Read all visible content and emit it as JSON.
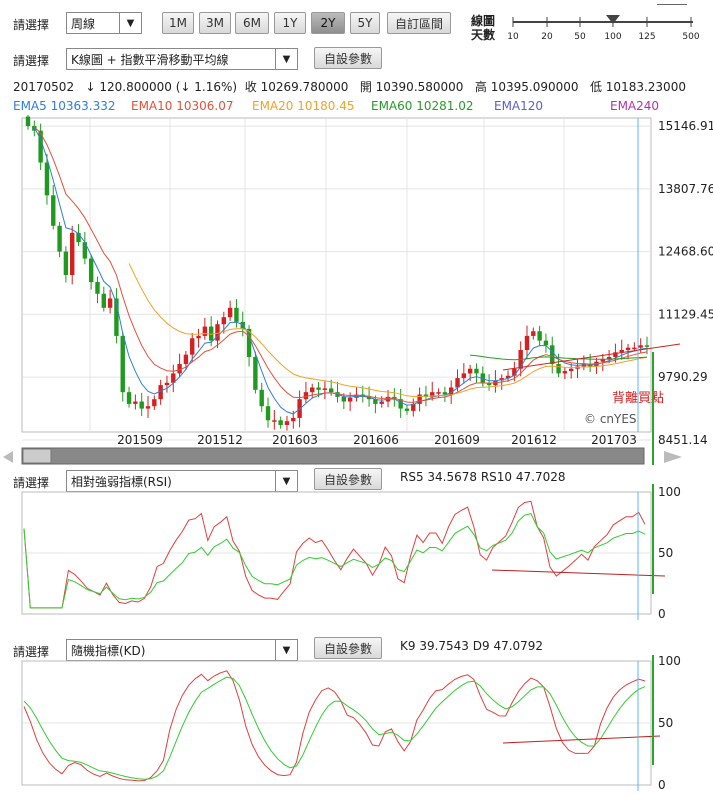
{
  "toolbar1": {
    "select_label": "請選擇",
    "period_value": "周線",
    "range_buttons": [
      "1M",
      "3M",
      "6M",
      "1Y",
      "2Y",
      "5Y"
    ],
    "active_range": "2Y",
    "custom_range_label": "自訂區間",
    "line_days_label_1": "線圖",
    "line_days_label_2": "天數",
    "slider_ticks": [
      "10",
      "20",
      "50",
      "100",
      "125",
      "500"
    ],
    "slider_value": 100
  },
  "toolbar2": {
    "select_label": "請選擇",
    "indicator_value": "K線圖 + 指數平滑移動平均線",
    "settings_label": "自設參數"
  },
  "quote": {
    "date": "20170502",
    "change": "↓ 120.800000 (↓ 1.16%)",
    "close": "收 10269.780000",
    "open": "開 10390.580000",
    "high": "高 10395.090000",
    "low": "低 10183.23000"
  },
  "ema_legend": [
    {
      "text": "EMA5 10363.332",
      "color": "#2f7fd8"
    },
    {
      "text": "EMA10 10306.07",
      "color": "#e0533b"
    },
    {
      "text": "EMA20 10180.45",
      "color": "#f0a22a"
    },
    {
      "text": "EMA60 10281.02",
      "color": "#2a9a2a"
    },
    {
      "text": "EMA120",
      "color": "#5b5fc7"
    },
    {
      "text": "EMA240",
      "color": "#b333b3"
    }
  ],
  "annotations": {
    "divergence": "背離買點",
    "watermark": "© cnYES"
  },
  "rsi": {
    "select_label": "請選擇",
    "indicator_value": "相對強弱指標(RSI)",
    "settings_label": "自設參數",
    "readout": "RS5 34.5678   RS10 47.7028"
  },
  "kd": {
    "select_label": "請選擇",
    "indicator_value": "隨機指標(KD)",
    "settings_label": "自設參數",
    "readout": "K9 39.7543   D9 47.0792"
  },
  "colors": {
    "up": "#d42020",
    "down": "#1f9a1f",
    "ema5": "#2f7fd8",
    "ema10": "#e0533b",
    "ema20": "#f0a22a",
    "ema60": "#2a9a2a",
    "cursor": "#58b8f0",
    "trend": "#d42020",
    "trend_green": "#2aa52a"
  },
  "chart_data": [
    {
      "type": "candlestick",
      "title": "",
      "x_tick_labels": [
        "201509",
        "201512",
        "201603",
        "201606",
        "201609",
        "201612",
        "201703"
      ],
      "y_tick_labels": [
        "15146.91",
        "13807.76",
        "12468.60",
        "11129.45",
        "9790.29",
        "8451.14"
      ],
      "ylim": [
        8451.14,
        15146.91
      ],
      "grid": true,
      "weekly_close": [
        14980,
        14880,
        14200,
        13500,
        12850,
        12300,
        11800,
        12700,
        12500,
        12150,
        11650,
        11400,
        11100,
        11300,
        10500,
        9300,
        9050,
        9100,
        8950,
        9000,
        9150,
        9450,
        9500,
        9700,
        9900,
        10100,
        10450,
        10500,
        10700,
        10400,
        10750,
        10900,
        11100,
        10800,
        10650,
        10050,
        9350,
        9000,
        8700,
        8700,
        8600,
        8680,
        8750,
        9150,
        9300,
        9400,
        9350,
        9380,
        9300,
        9200,
        9100,
        9180,
        9250,
        9200,
        9150,
        9050,
        9100,
        9200,
        9150,
        8950,
        8900,
        9050,
        9250,
        9200,
        9300,
        9300,
        9250,
        9400,
        9600,
        9700,
        9800,
        9700,
        9500,
        9450,
        9550,
        9600,
        9650,
        9800,
        10200,
        10500,
        10600,
        10400,
        10300,
        9900,
        9700,
        9750,
        9800,
        9850,
        9900,
        9850,
        9950,
        10000,
        10050,
        10150,
        10200,
        10250,
        10250,
        10300,
        10270
      ],
      "series": [
        {
          "name": "EMA5",
          "last": 10363.332
        },
        {
          "name": "EMA10",
          "last": 10306.07
        },
        {
          "name": "EMA20",
          "last": 10180.45
        },
        {
          "name": "EMA60",
          "last": 10281.02
        }
      ],
      "annotations": [
        "背離買點"
      ]
    },
    {
      "type": "line",
      "y_tick_labels": [
        "100",
        "50",
        "0"
      ],
      "ylim": [
        0,
        100
      ],
      "series": [
        {
          "name": "RS5",
          "last": 34.5678
        },
        {
          "name": "RS10",
          "last": 47.7028
        }
      ]
    },
    {
      "type": "line",
      "y_tick_labels": [
        "100",
        "50",
        "0"
      ],
      "ylim": [
        0,
        100
      ],
      "series": [
        {
          "name": "K9",
          "last": 39.7543
        },
        {
          "name": "D9",
          "last": 47.0792
        }
      ]
    }
  ]
}
